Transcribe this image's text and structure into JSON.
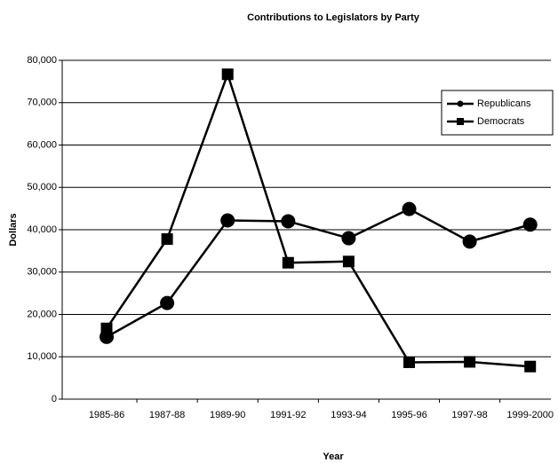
{
  "chart_data": {
    "type": "line",
    "title": "Contributions to Legislators by Party",
    "xlabel": "Year",
    "ylabel": "Dollars",
    "categories": [
      "1985-86",
      "1987-88",
      "1989-90",
      "1991-92",
      "1993-94",
      "1995-96",
      "1997-98",
      "1999-2000"
    ],
    "series": [
      {
        "name": "Republicans",
        "color": "#000000",
        "marker": "circle",
        "values": [
          14700,
          22700,
          42200,
          42000,
          38000,
          44900,
          37200,
          41200
        ]
      },
      {
        "name": "Democrats",
        "color": "#000000",
        "marker": "square",
        "values": [
          16700,
          37800,
          76700,
          32200,
          32500,
          8700,
          8800,
          7700
        ]
      }
    ],
    "ylim": [
      0,
      80000
    ],
    "yticks": [
      {
        "value": 0,
        "label": "0"
      },
      {
        "value": 10000,
        "label": "10,000"
      },
      {
        "value": 20000,
        "label": "20,000"
      },
      {
        "value": 30000,
        "label": "30,000"
      },
      {
        "value": 40000,
        "label": "40,000"
      },
      {
        "value": 50000,
        "label": "50,000"
      },
      {
        "value": 60000,
        "label": "60,000"
      },
      {
        "value": 70000,
        "label": "70,000"
      },
      {
        "value": 80000,
        "label": "80,000"
      }
    ],
    "grid": true,
    "legend": "upper right"
  }
}
